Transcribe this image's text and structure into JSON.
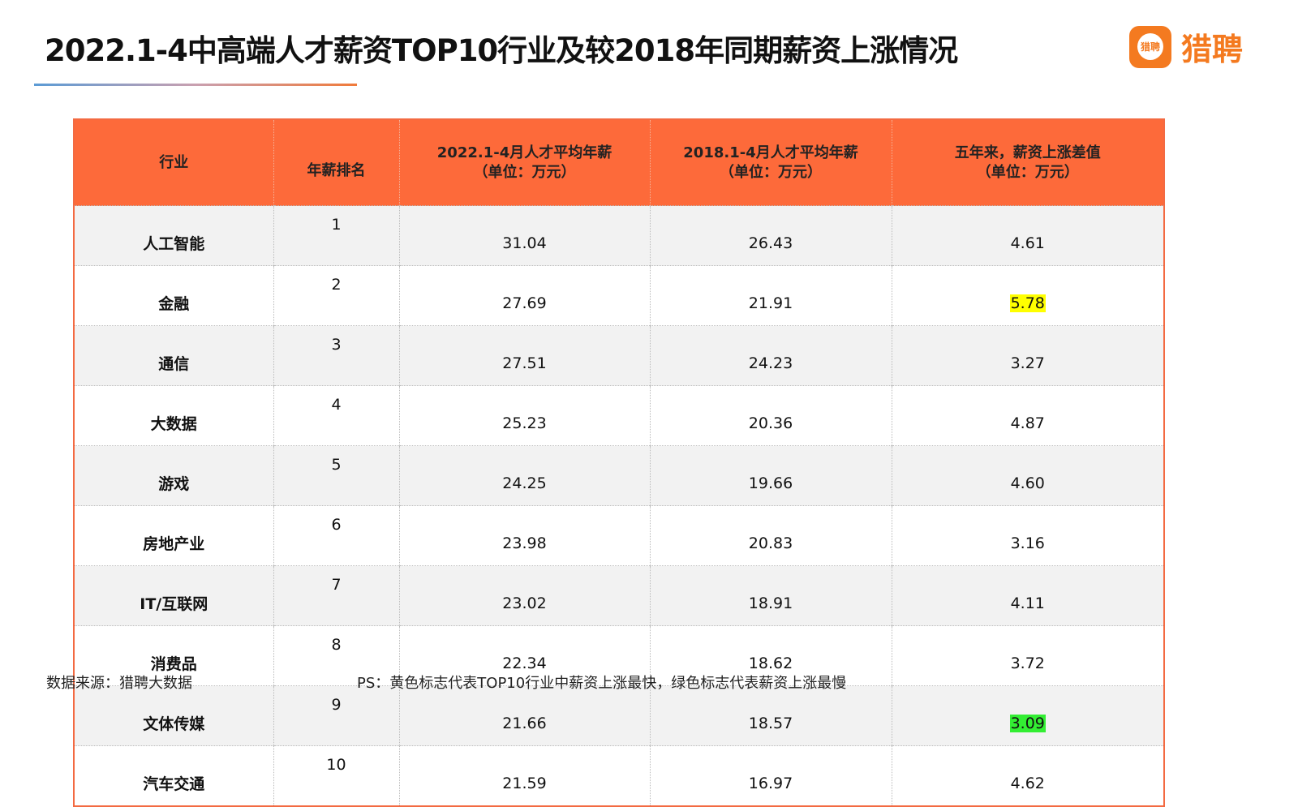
{
  "title": "2022.1-4中高端人才薪资TOP10行业及较2018年同期薪资上涨情况",
  "logo": {
    "icon_text": "猎聘",
    "text": "猎聘"
  },
  "headers": [
    "行业",
    "年薪排名",
    "2022.1-4月人才平均年薪\n（单位：万元）",
    "2018.1-4月人才平均年薪\n（单位：万元）",
    "五年来，薪资上涨差值\n（单位：万元）"
  ],
  "rows": [
    [
      "人工智能",
      "1",
      "31.04",
      "26.43",
      "4.61"
    ],
    [
      "金融",
      "2",
      "27.69",
      "21.91",
      "5.78"
    ],
    [
      "通信",
      "3",
      "27.51",
      "24.23",
      "3.27"
    ],
    [
      "大数据",
      "4",
      "25.23",
      "20.36",
      "4.87"
    ],
    [
      "游戏",
      "5",
      "24.25",
      "19.66",
      "4.60"
    ],
    [
      "房地产业",
      "6",
      "23.98",
      "20.83",
      "3.16"
    ],
    [
      "IT/互联网",
      "7",
      "23.02",
      "18.91",
      "4.11"
    ],
    [
      "消费品",
      "8",
      "22.34",
      "18.62",
      "3.72"
    ],
    [
      "文体传媒",
      "9",
      "21.66",
      "18.57",
      "3.09"
    ],
    [
      "汽车交通",
      "10",
      "21.59",
      "16.97",
      "4.62"
    ]
  ],
  "highlights": {
    "1": "#ffff00",
    "8": "#33ee33"
  },
  "source": "数据来源：猎聘大数据",
  "note": "PS：黄色标志代表TOP10行业中薪资上涨最快，绿色标志代表薪资上涨最慢"
}
